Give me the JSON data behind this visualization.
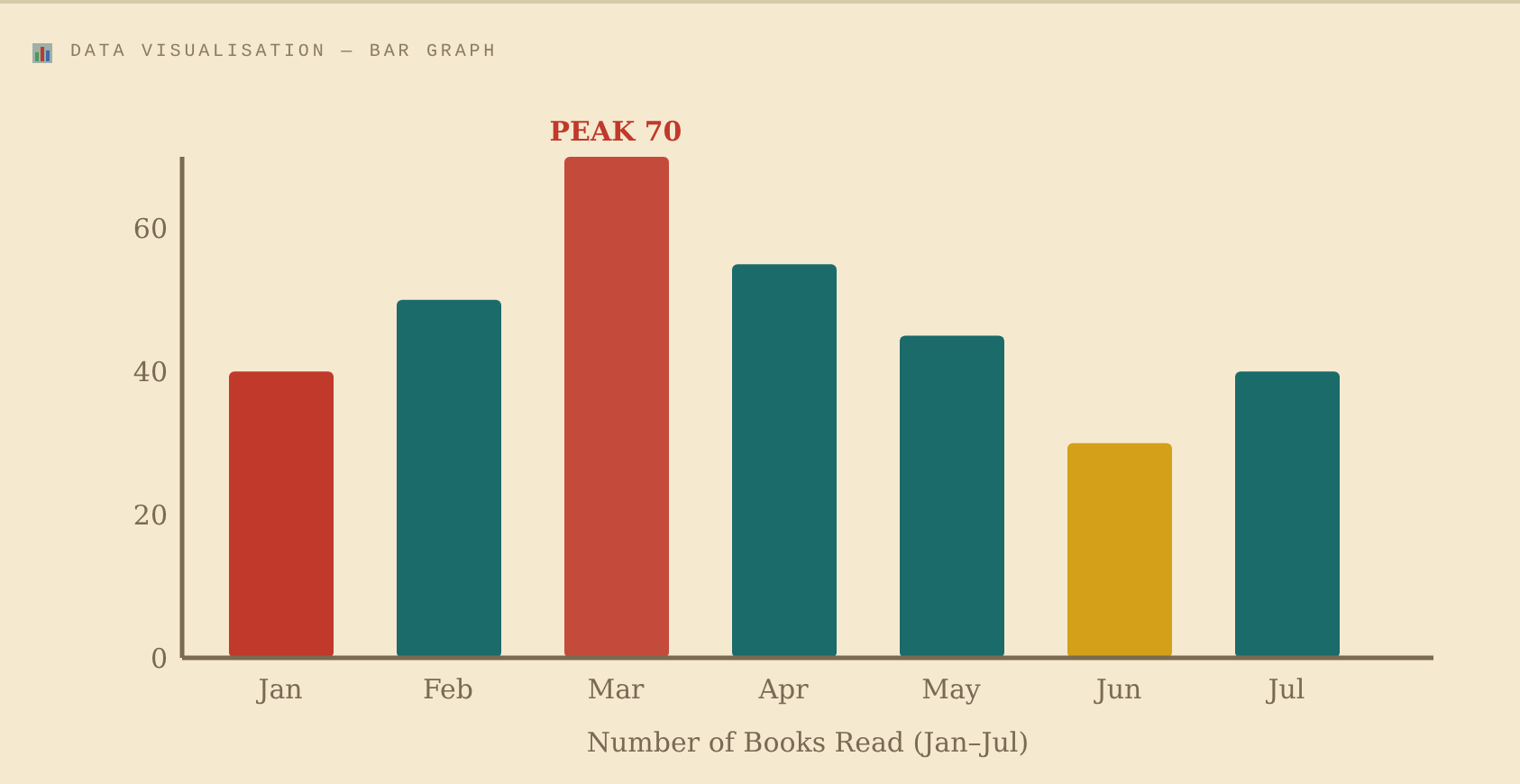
{
  "chart_data": {
    "type": "bar",
    "title": "DATA VISUALISATION — BAR GRAPH",
    "xlabel": "Number of Books Read (Jan–Jul)",
    "categories": [
      "Jan",
      "Feb",
      "Mar",
      "Apr",
      "May",
      "Jun",
      "Jul"
    ],
    "values": [
      40,
      50,
      70,
      55,
      45,
      30,
      40
    ],
    "colors": [
      "#c0392b",
      "#1b6b6b",
      "#c44b3b",
      "#1b6b6b",
      "#1b6b6b",
      "#d4a019",
      "#1b6b6b"
    ],
    "ylim": [
      0,
      70
    ],
    "yticks": [
      0,
      20,
      40,
      60
    ],
    "annotations": [
      {
        "text": "PEAK 70",
        "x": "Mar",
        "y": 70
      }
    ]
  }
}
